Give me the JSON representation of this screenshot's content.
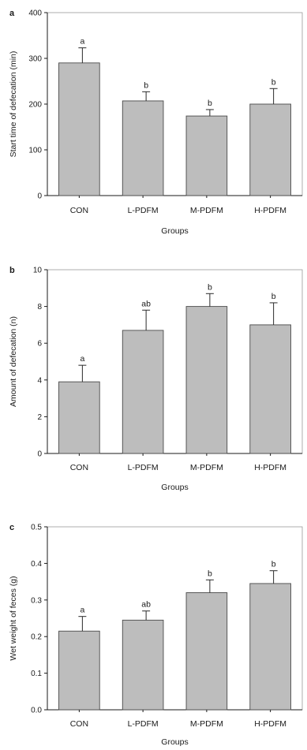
{
  "chart_data": [
    {
      "type": "bar",
      "panel": "a",
      "categories": [
        "CON",
        "L-PDFM",
        "M-PDFM",
        "H-PDFM"
      ],
      "values": [
        290,
        207,
        174,
        200
      ],
      "errors": [
        33,
        20,
        14,
        34
      ],
      "significance": [
        "a",
        "b",
        "b",
        "b"
      ],
      "xlabel": "Groups",
      "ylabel": "Start time of defecation (min)",
      "ylim": [
        0,
        400
      ],
      "yticks": [
        0,
        100,
        200,
        300,
        400
      ],
      "grid": false,
      "bar_color": "#bdbdbd"
    },
    {
      "type": "bar",
      "panel": "b",
      "categories": [
        "CON",
        "L-PDFM",
        "M-PDFM",
        "H-PDFM"
      ],
      "values": [
        3.9,
        6.7,
        8.0,
        7.0
      ],
      "errors": [
        0.9,
        1.1,
        0.7,
        1.2
      ],
      "significance": [
        "a",
        "ab",
        "b",
        "b"
      ],
      "xlabel": "Groups",
      "ylabel": "Amount of defecation (n)",
      "ylim": [
        0,
        10
      ],
      "yticks": [
        0,
        2,
        4,
        6,
        8,
        10
      ],
      "grid": false,
      "bar_color": "#bdbdbd"
    },
    {
      "type": "bar",
      "panel": "c",
      "categories": [
        "CON",
        "L-PDFM",
        "M-PDFM",
        "H-PDFM"
      ],
      "values": [
        0.215,
        0.245,
        0.32,
        0.345
      ],
      "errors": [
        0.04,
        0.025,
        0.035,
        0.035
      ],
      "significance": [
        "a",
        "ab",
        "b",
        "b"
      ],
      "xlabel": "Groups",
      "ylabel": "Wet weight of feces (g)",
      "ylim": [
        0,
        0.5
      ],
      "yticks": [
        0.0,
        0.1,
        0.2,
        0.3,
        0.4,
        0.5
      ],
      "grid": false,
      "bar_color": "#bdbdbd"
    }
  ]
}
